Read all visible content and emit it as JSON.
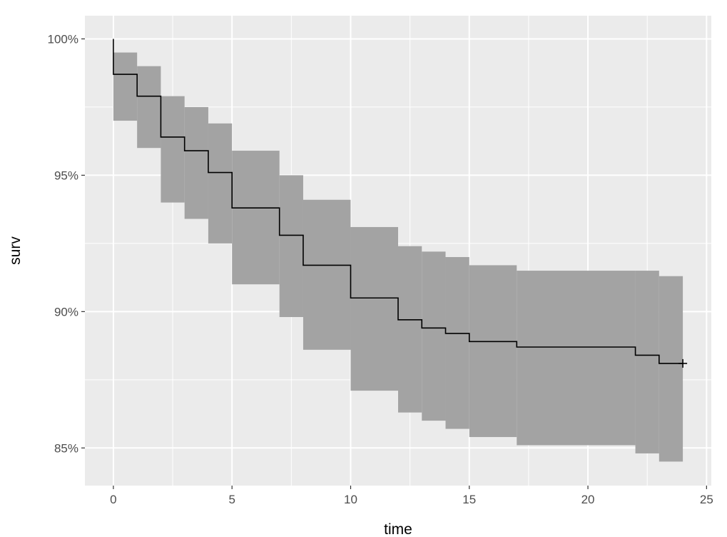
{
  "chart_data": {
    "type": "line",
    "title": "",
    "xlabel": "time",
    "ylabel": "surv",
    "xlim": [
      -1.2,
      25.2
    ],
    "ylim": [
      0.8362,
      1.0085
    ],
    "x_ticks": [
      0,
      5,
      10,
      15,
      20,
      25
    ],
    "x_tick_labels": [
      "0",
      "5",
      "10",
      "15",
      "20",
      "25"
    ],
    "y_ticks": [
      0.85,
      0.9,
      0.95,
      1.0
    ],
    "y_tick_labels": [
      "85%",
      "90%",
      "95%",
      "100%"
    ],
    "grid": true,
    "legend": "none",
    "series": [
      {
        "kind": "step",
        "x": [
          0,
          1,
          2,
          3,
          4,
          5,
          7,
          8,
          10,
          12,
          13,
          14,
          15,
          17,
          22,
          23,
          24
        ],
        "y": [
          0.987,
          0.979,
          0.964,
          0.959,
          0.951,
          0.938,
          0.928,
          0.917,
          0.905,
          0.897,
          0.894,
          0.892,
          0.889,
          0.887,
          0.884,
          0.881,
          0.881
        ],
        "lower": [
          0.97,
          0.96,
          0.94,
          0.934,
          0.925,
          0.91,
          0.898,
          0.886,
          0.871,
          0.863,
          0.86,
          0.857,
          0.854,
          0.851,
          0.848,
          0.845,
          0.845
        ],
        "upper": [
          0.995,
          0.99,
          0.979,
          0.975,
          0.969,
          0.959,
          0.95,
          0.941,
          0.931,
          0.924,
          0.922,
          0.92,
          0.917,
          0.915,
          0.915,
          0.913,
          0.913
        ],
        "start_y": 1.0,
        "censor_x": [
          24
        ],
        "censor_y": [
          0.881
        ]
      }
    ],
    "colors": {
      "panel": "#ebebeb",
      "grid_major": "#ffffff",
      "ribbon": "#a3a3a3",
      "line": "#000000",
      "tick_text": "#4d4d4d"
    }
  }
}
